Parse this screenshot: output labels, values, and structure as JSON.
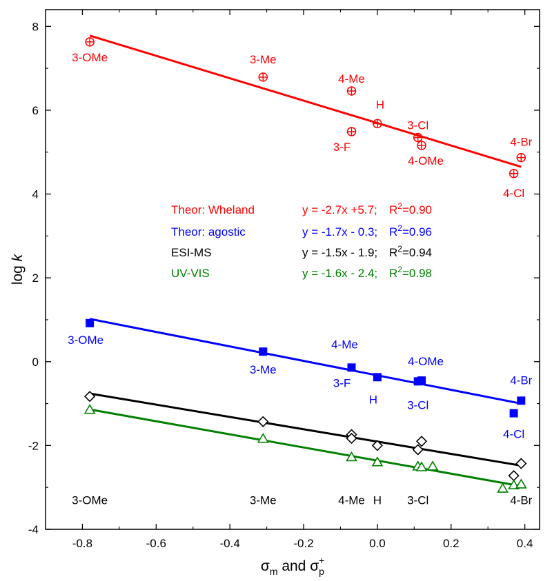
{
  "chart_data": {
    "type": "scatter",
    "xlabel": "σm and σp+",
    "ylabel": "log k",
    "xlim": [
      -0.9,
      0.44
    ],
    "ylim": [
      -4,
      8.4
    ],
    "xticks": [
      -0.8,
      -0.6,
      -0.4,
      -0.2,
      0.0,
      0.2,
      0.4
    ],
    "xtick_labels": [
      "-0.8",
      "-0.6",
      "-0.4",
      "-0.2",
      "0.0",
      "0.2",
      "0.4"
    ],
    "yticks": [
      -4,
      -2,
      0,
      2,
      4,
      6,
      8
    ],
    "ytick_labels": [
      "-4",
      "-2",
      "0",
      "2",
      "4",
      "6",
      "8"
    ],
    "grid": false,
    "legend_placement": "center",
    "series": [
      {
        "name": "Theor: Wheland",
        "color": "#ff0000",
        "marker": "circle-plus",
        "equation": "y = -2.7x +5.7;",
        "r2": "R2=0.90",
        "fit": {
          "x": [
            -0.78,
            0.39
          ],
          "y": [
            7.78,
            4.65
          ]
        },
        "points": [
          {
            "x": -0.78,
            "y": 7.63,
            "label": "3-OMe"
          },
          {
            "x": -0.31,
            "y": 6.79,
            "label": "3-Me"
          },
          {
            "x": -0.07,
            "y": 6.46,
            "label": "4-Me"
          },
          {
            "x": -0.07,
            "y": 5.49,
            "label": "3-F"
          },
          {
            "x": 0.0,
            "y": 5.68,
            "label": "H"
          },
          {
            "x": 0.11,
            "y": 5.35,
            "label": "3-Cl"
          },
          {
            "x": 0.12,
            "y": 5.16,
            "label": "4-OMe"
          },
          {
            "x": 0.37,
            "y": 4.49,
            "label": "4-Cl"
          },
          {
            "x": 0.39,
            "y": 4.87,
            "label": "4-Br"
          }
        ]
      },
      {
        "name": "Theor: agostic",
        "color": "#0000ff",
        "marker": "square",
        "equation": "y = -1.7x - 0.3;",
        "r2": "R2=0.96",
        "fit": {
          "x": [
            -0.78,
            0.39
          ],
          "y": [
            1.02,
            -1.0
          ]
        },
        "points": [
          {
            "x": -0.78,
            "y": 0.92,
            "label": "3-OMe"
          },
          {
            "x": -0.31,
            "y": 0.24,
            "label": "3-Me"
          },
          {
            "x": -0.07,
            "y": -0.14,
            "label": "4-Me"
          },
          {
            "x": 0.0,
            "y": -0.37,
            "label": "H"
          },
          {
            "x": 0.11,
            "y": -0.47,
            "label": "3-Cl"
          },
          {
            "x": 0.12,
            "y": -0.45,
            "label": "4-OMe"
          },
          {
            "x": 0.37,
            "y": -1.23,
            "label": "4-Cl"
          },
          {
            "x": 0.39,
            "y": -0.93,
            "label": "4-Br"
          }
        ]
      },
      {
        "name": "ESI-MS",
        "color": "#000000",
        "marker": "diamond",
        "equation": "y = -1.5x - 1.9;",
        "r2": "R2=0.94",
        "fit": {
          "x": [
            -0.78,
            0.39
          ],
          "y": [
            -0.76,
            -2.48
          ]
        },
        "points": [
          {
            "x": -0.78,
            "y": -0.83
          },
          {
            "x": -0.31,
            "y": -1.43
          },
          {
            "x": -0.07,
            "y": -1.74
          },
          {
            "x": -0.07,
            "y": -1.83
          },
          {
            "x": 0.0,
            "y": -2.0
          },
          {
            "x": 0.11,
            "y": -2.1
          },
          {
            "x": 0.12,
            "y": -1.9
          },
          {
            "x": 0.37,
            "y": -2.72
          },
          {
            "x": 0.39,
            "y": -2.43
          }
        ]
      },
      {
        "name": "UV-VIS",
        "color": "#008000",
        "marker": "triangle",
        "equation": "y = -1.6x - 2.4;",
        "r2": "R2=0.98",
        "fit": {
          "x": [
            -0.78,
            0.39
          ],
          "y": [
            -1.14,
            -2.97
          ]
        },
        "points": [
          {
            "x": -0.78,
            "y": -1.15
          },
          {
            "x": -0.31,
            "y": -1.84
          },
          {
            "x": -0.07,
            "y": -2.28
          },
          {
            "x": 0.0,
            "y": -2.4
          },
          {
            "x": 0.11,
            "y": -2.5
          },
          {
            "x": 0.12,
            "y": -2.52
          },
          {
            "x": 0.15,
            "y": -2.5
          },
          {
            "x": 0.34,
            "y": -3.03
          },
          {
            "x": 0.37,
            "y": -2.95
          },
          {
            "x": 0.39,
            "y": -2.93
          }
        ]
      }
    ],
    "bottom_labels": [
      {
        "x": -0.78,
        "text": "3-OMe"
      },
      {
        "x": -0.31,
        "text": "3-Me"
      },
      {
        "x": -0.07,
        "text": "4-Me"
      },
      {
        "x": 0.0,
        "text": "H"
      },
      {
        "x": 0.11,
        "text": "3-Cl"
      },
      {
        "x": 0.39,
        "text": "4-Br"
      }
    ],
    "bottom_label_y": -3.4
  }
}
